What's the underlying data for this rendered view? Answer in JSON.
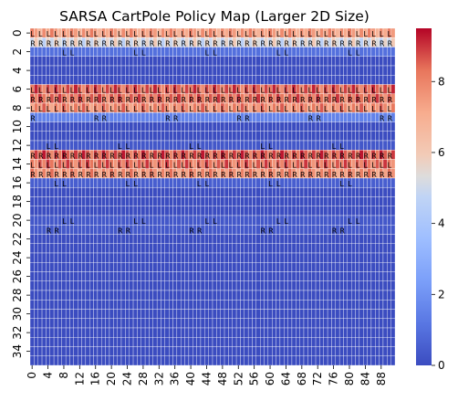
{
  "chart_data": {
    "type": "heatmap",
    "title": "SARSA CartPole Policy Map (Larger 2D Size)",
    "xlabel": "",
    "ylabel": "",
    "n_rows": 36,
    "n_cols": 92,
    "x_ticks": [
      0,
      4,
      8,
      12,
      16,
      20,
      24,
      28,
      32,
      36,
      40,
      44,
      48,
      52,
      56,
      60,
      64,
      68,
      72,
      76,
      80,
      84,
      88
    ],
    "y_ticks": [
      0,
      2,
      4,
      6,
      8,
      10,
      12,
      14,
      16,
      18,
      20,
      22,
      24,
      26,
      28,
      30,
      32,
      34
    ],
    "colorbar": {
      "ticks": [
        0,
        2,
        4,
        6,
        8
      ],
      "range": [
        0,
        9.5
      ],
      "colormap": "coolwarm"
    },
    "cell_annotations": [
      "L",
      "R"
    ],
    "row_values": [
      {
        "row": 0,
        "value": 8.2
      },
      {
        "row": 1,
        "value": 6.0
      },
      {
        "row": 2,
        "value": 1.0
      },
      {
        "row": 3,
        "value": 0
      },
      {
        "row": 4,
        "value": 0
      },
      {
        "row": 5,
        "value": 0
      },
      {
        "row": 6,
        "value": 9.2
      },
      {
        "row": 7,
        "value": 9.0
      },
      {
        "row": 8,
        "value": 8.6
      },
      {
        "row": 9,
        "value": 1.5
      },
      {
        "row": 10,
        "value": 0
      },
      {
        "row": 11,
        "value": 0
      },
      {
        "row": 12,
        "value": 0.3
      },
      {
        "row": 13,
        "value": 9.3
      },
      {
        "row": 14,
        "value": 9.0
      },
      {
        "row": 15,
        "value": 8.4
      },
      {
        "row": 16,
        "value": 0.5
      },
      {
        "row": 17,
        "value": 0
      },
      {
        "row": 18,
        "value": 0
      },
      {
        "row": 19,
        "value": 0
      },
      {
        "row": 20,
        "value": 0.3
      },
      {
        "row": 21,
        "value": 0.3
      },
      {
        "row": 22,
        "value": 0
      },
      {
        "row": 23,
        "value": 0
      },
      {
        "row": 24,
        "value": 0
      },
      {
        "row": 25,
        "value": 0
      },
      {
        "row": 26,
        "value": 0
      },
      {
        "row": 27,
        "value": 0
      },
      {
        "row": 28,
        "value": 0
      },
      {
        "row": 29,
        "value": 0
      },
      {
        "row": 30,
        "value": 0
      },
      {
        "row": 31,
        "value": 0
      },
      {
        "row": 32,
        "value": 0
      },
      {
        "row": 33,
        "value": 0
      },
      {
        "row": 34,
        "value": 0
      },
      {
        "row": 35,
        "value": 0
      }
    ]
  }
}
